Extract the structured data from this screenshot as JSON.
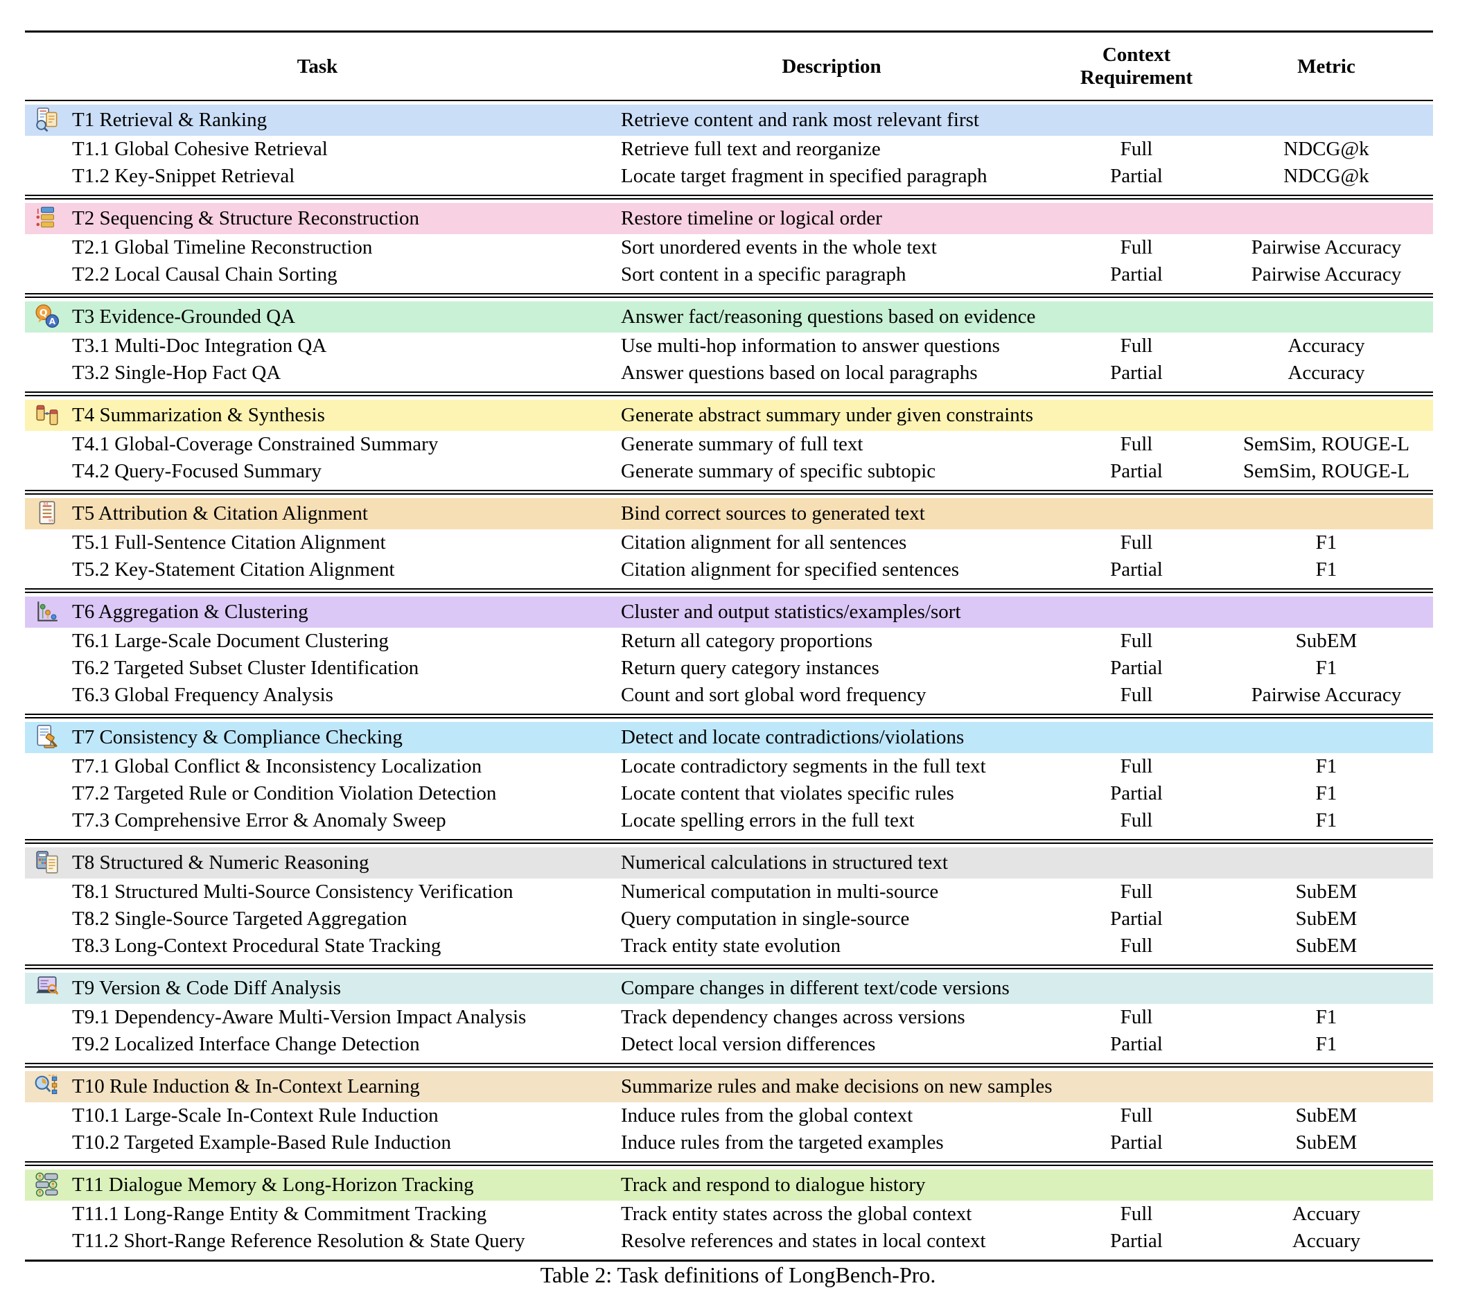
{
  "table": {
    "columns": [
      "Task",
      "Description",
      "Context Requirement",
      "Metric"
    ],
    "sections": [
      {
        "id": "T1",
        "icon": "retrieval-ranking-icon",
        "color": "#cbdef7",
        "task": "T1 Retrieval & Ranking",
        "description": "Retrieve content and rank most relevant first",
        "rows": [
          {
            "task": "T1.1 Global Cohesive Retrieval",
            "description": "Retrieve full text and reorganize",
            "context": "Full",
            "metric": "NDCG@k"
          },
          {
            "task": "T1.2 Key-Snippet Retrieval",
            "description": "Locate target fragment in specified paragraph",
            "context": "Partial",
            "metric": "NDCG@k"
          }
        ]
      },
      {
        "id": "T2",
        "icon": "sequencing-list-icon",
        "color": "#f8d2e2",
        "task": "T2 Sequencing & Structure Reconstruction",
        "description": "Restore timeline or logical order",
        "rows": [
          {
            "task": "T2.1 Global Timeline Reconstruction",
            "description": "Sort unordered events in the whole text",
            "context": "Full",
            "metric": "Pairwise Accuracy"
          },
          {
            "task": "T2.2 Local Causal Chain Sorting",
            "description": "Sort content in a specific paragraph",
            "context": "Partial",
            "metric": "Pairwise Accuracy"
          }
        ]
      },
      {
        "id": "T3",
        "icon": "qa-bubbles-icon",
        "color": "#c9f1d6",
        "task": "T3 Evidence-Grounded QA",
        "description": "Answer fact/reasoning questions based on evidence",
        "rows": [
          {
            "task": "T3.1 Multi-Doc Integration QA",
            "description": "Use multi-hop information to answer questions",
            "context": "Full",
            "metric": "Accuracy"
          },
          {
            "task": "T3.2 Single-Hop Fact QA",
            "description": "Answer questions based on local paragraphs",
            "context": "Partial",
            "metric": "Accuracy"
          }
        ]
      },
      {
        "id": "T4",
        "icon": "summarization-icon",
        "color": "#fdf4b4",
        "task": "T4 Summarization & Synthesis",
        "description": "Generate abstract summary under given constraints",
        "rows": [
          {
            "task": "T4.1 Global-Coverage Constrained Summary",
            "description": "Generate summary of full text",
            "context": "Full",
            "metric": "SemSim, ROUGE-L"
          },
          {
            "task": "T4.2 Query-Focused Summary",
            "description": "Generate summary of specific subtopic",
            "context": "Partial",
            "metric": "SemSim, ROUGE-L"
          }
        ]
      },
      {
        "id": "T5",
        "icon": "attribution-citation-icon",
        "color": "#f6dfb4",
        "task": "T5 Attribution & Citation Alignment",
        "description": "Bind correct sources to generated text",
        "rows": [
          {
            "task": "T5.1 Full-Sentence Citation Alignment",
            "description": "Citation alignment for all sentences",
            "context": "Full",
            "metric": "F1"
          },
          {
            "task": "T5.2 Key-Statement Citation Alignment",
            "description": "Citation alignment for specified sentences",
            "context": "Partial",
            "metric": "F1"
          }
        ]
      },
      {
        "id": "T6",
        "icon": "aggregation-clustering-icon",
        "color": "#dbc8f6",
        "task": "T6 Aggregation & Clustering",
        "description": "Cluster and output statistics/examples/sort",
        "rows": [
          {
            "task": "T6.1 Large-Scale Document Clustering",
            "description": "Return all category proportions",
            "context": "Full",
            "metric": "SubEM"
          },
          {
            "task": "T6.2 Targeted Subset Cluster Identification",
            "description": "Return query category instances",
            "context": "Partial",
            "metric": "F1"
          },
          {
            "task": "T6.3 Global Frequency Analysis",
            "description": "Count and sort global word frequency",
            "context": "Full",
            "metric": "Pairwise Accuracy"
          }
        ]
      },
      {
        "id": "T7",
        "icon": "compliance-gavel-icon",
        "color": "#bfe7fa",
        "task": "T7 Consistency & Compliance Checking",
        "description": "Detect and locate contradictions/violations",
        "rows": [
          {
            "task": "T7.1 Global Conflict & Inconsistency Localization",
            "description": "Locate contradictory segments in the full text",
            "context": "Full",
            "metric": "F1"
          },
          {
            "task": "T7.2 Targeted Rule or Condition Violation Detection",
            "description": "Locate content that violates specific rules",
            "context": "Partial",
            "metric": "F1"
          },
          {
            "task": "T7.3 Comprehensive Error & Anomaly Sweep",
            "description": "Locate spelling errors in the full text",
            "context": "Full",
            "metric": "F1"
          }
        ]
      },
      {
        "id": "T8",
        "icon": "numeric-calculator-icon",
        "color": "#e4e4e4",
        "task": "T8 Structured & Numeric Reasoning",
        "description": "Numerical calculations in structured text",
        "rows": [
          {
            "task": "T8.1 Structured Multi-Source Consistency Verification",
            "description": "Numerical computation in multi-source",
            "context": "Full",
            "metric": "SubEM"
          },
          {
            "task": "T8.2 Single-Source Targeted Aggregation",
            "description": "Query computation in single-source",
            "context": "Partial",
            "metric": "SubEM"
          },
          {
            "task": "T8.3 Long-Context Procedural State Tracking",
            "description": "Track entity state evolution",
            "context": "Full",
            "metric": "SubEM"
          }
        ]
      },
      {
        "id": "T9",
        "icon": "version-diff-icon",
        "color": "#d7eded",
        "task": "T9 Version & Code Diff Analysis",
        "description": "Compare changes in different text/code versions",
        "rows": [
          {
            "task": "T9.1 Dependency-Aware Multi-Version Impact Analysis",
            "description": "Track dependency changes across versions",
            "context": "Full",
            "metric": "F1"
          },
          {
            "task": "T9.2 Localized Interface Change Detection",
            "description": "Detect local version differences",
            "context": "Partial",
            "metric": "F1"
          }
        ]
      },
      {
        "id": "T10",
        "icon": "rule-induction-icon",
        "color": "#f3e2c3",
        "task": "T10 Rule Induction & In-Context Learning",
        "description": "Summarize rules and make decisions on new samples",
        "rows": [
          {
            "task": "T10.1 Large-Scale In-Context Rule Induction",
            "description": "Induce rules from the global context",
            "context": "Full",
            "metric": "SubEM"
          },
          {
            "task": "T10.2 Targeted Example-Based Rule Induction",
            "description": "Induce rules from the targeted examples",
            "context": "Partial",
            "metric": "SubEM"
          }
        ]
      },
      {
        "id": "T11",
        "icon": "dialogue-memory-icon",
        "color": "#dbf1bb",
        "task": "T11 Dialogue Memory & Long-Horizon Tracking",
        "description": "Track and respond to dialogue history",
        "rows": [
          {
            "task": "T11.1 Long-Range Entity & Commitment Tracking",
            "description": "Track entity states across the global context",
            "context": "Full",
            "metric": "Accuary"
          },
          {
            "task": "T11.2 Short-Range Reference Resolution & State Query",
            "description": "Resolve references and states in local context",
            "context": "Partial",
            "metric": "Accuary"
          }
        ]
      }
    ]
  },
  "caption": "Table 2: Task definitions of LongBench-Pro."
}
